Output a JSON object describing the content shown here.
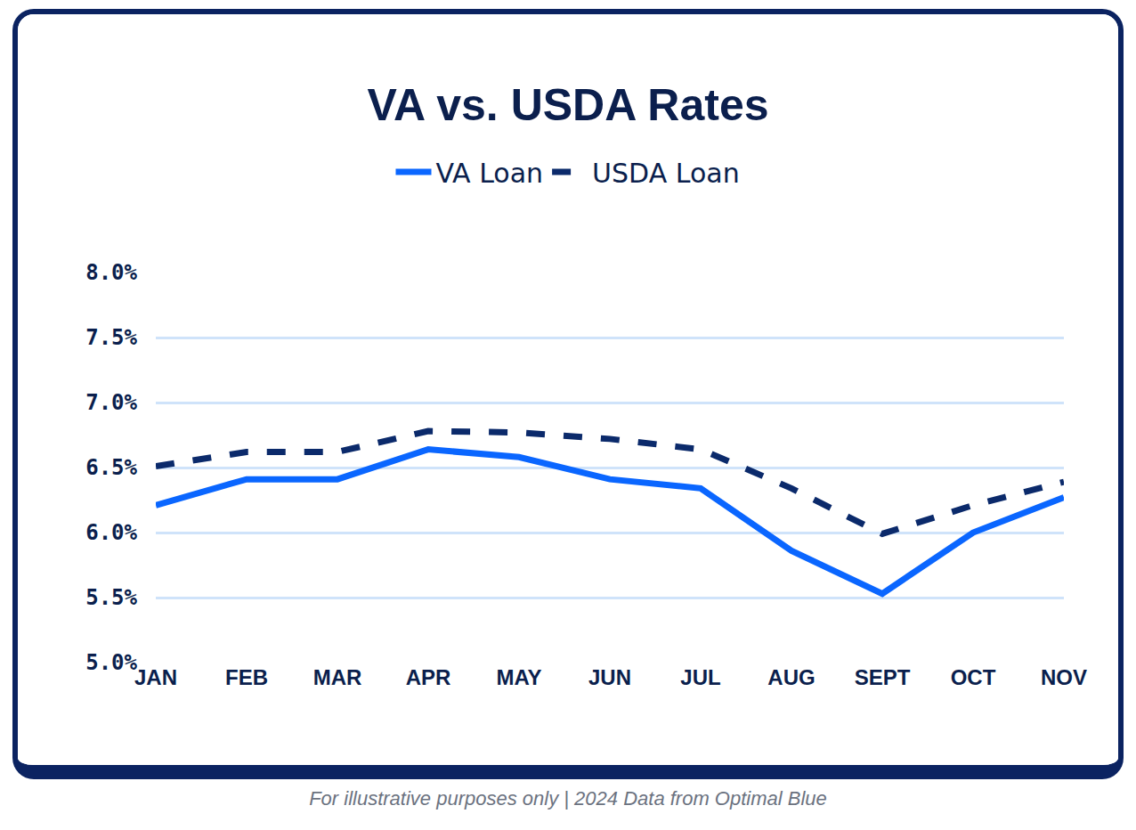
{
  "chart_data": {
    "type": "line",
    "title": "VA vs. USDA Rates",
    "caption": "For illustrative purposes only | 2024 Data from Optimal Blue",
    "categories": [
      "JAN",
      "FEB",
      "MAR",
      "APR",
      "MAY",
      "JUN",
      "JUL",
      "AUG",
      "SEPT",
      "OCT",
      "NOV"
    ],
    "series": [
      {
        "name": "VA Loan",
        "color": "#0a66ff",
        "line_style": "solid",
        "values": [
          6.21,
          6.41,
          6.41,
          6.64,
          6.58,
          6.41,
          6.34,
          5.86,
          5.53,
          6.0,
          6.27
        ]
      },
      {
        "name": "USDA Loan",
        "color": "#0b2a6b",
        "line_style": "dash",
        "values": [
          6.51,
          6.62,
          6.62,
          6.78,
          6.77,
          6.72,
          6.64,
          6.34,
          5.99,
          6.21,
          6.39
        ]
      }
    ],
    "ylim": [
      5,
      8
    ],
    "yticks": [
      {
        "value": 5,
        "label": "5.0%"
      },
      {
        "value": 5.5,
        "label": "5.5%"
      },
      {
        "value": 6,
        "label": "6.0%"
      },
      {
        "value": 6.5,
        "label": "6.5%"
      },
      {
        "value": 7,
        "label": "7.0%"
      },
      {
        "value": 7.5,
        "label": "7.5%"
      },
      {
        "value": 8,
        "label": "8.0%"
      }
    ],
    "grid": true,
    "legend": "top"
  }
}
